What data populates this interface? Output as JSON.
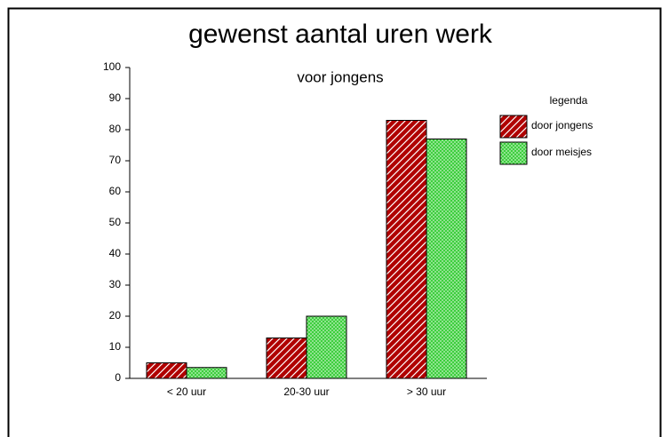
{
  "chart_data": {
    "type": "bar",
    "title": "gewenst aantal uren werk",
    "subtitle": "voor jongens",
    "categories": [
      "< 20 uur",
      "20-30 uur",
      "> 30 uur"
    ],
    "series": [
      {
        "name": "door jongens",
        "color": "#b00000",
        "pattern": "diagonal",
        "values": [
          5,
          13,
          83
        ]
      },
      {
        "name": "door meisjes",
        "color": "#33cc33",
        "pattern": "crosshatch",
        "values": [
          3.5,
          20,
          77
        ]
      }
    ],
    "ylim": [
      0,
      100
    ],
    "yticks": [
      0,
      10,
      20,
      30,
      40,
      50,
      60,
      70,
      80,
      90,
      100
    ],
    "legend_title": "legenda",
    "legend_position": "right"
  }
}
